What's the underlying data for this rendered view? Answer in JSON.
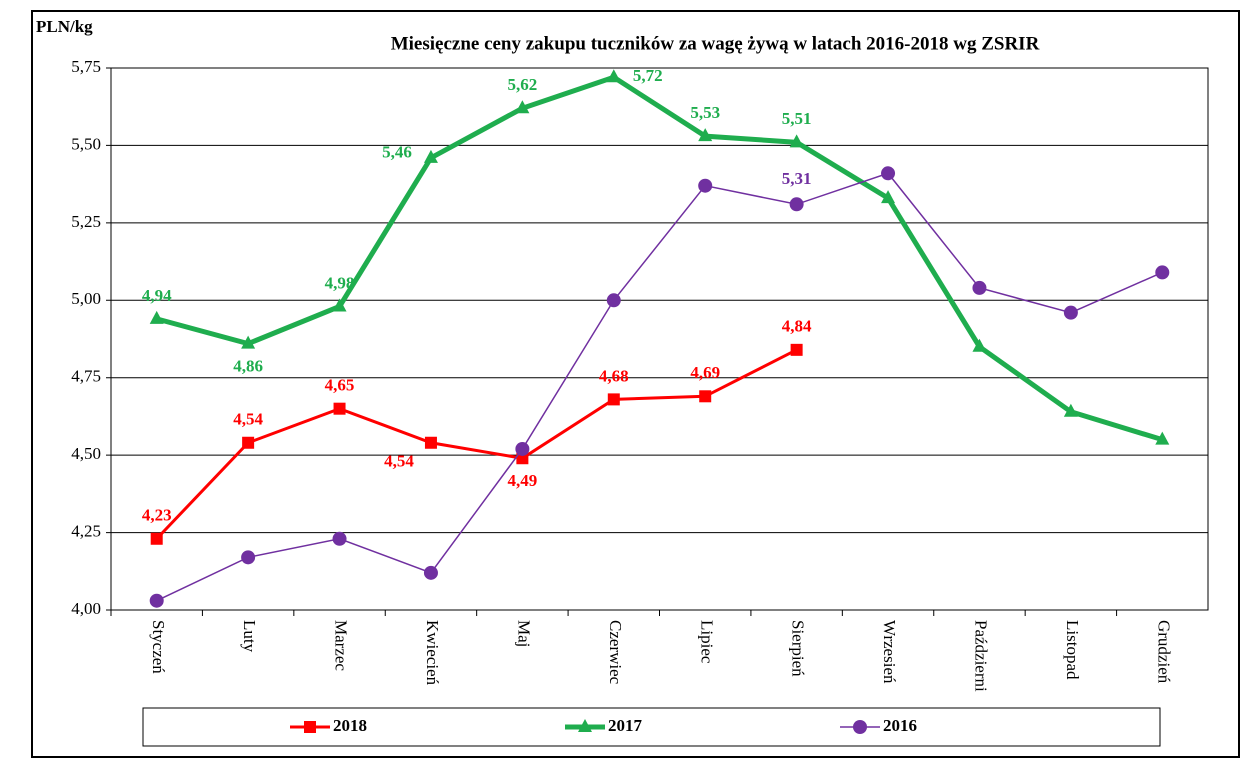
{
  "chart_data": {
    "type": "line",
    "title": "Miesięczne ceny zakupu tuczników za wagę żywą w latach 2016-2018  wg ZSRIR",
    "y_label": "PLN/kg",
    "categories": [
      "Styczeń",
      "Luty",
      "Marzec",
      "Kwiecień",
      "Maj",
      "Czerwiec",
      "Lipiec",
      "Sierpień",
      "Wrzesień",
      "Październi",
      "Listopad",
      "Grudzień"
    ],
    "series": [
      {
        "name": "2018",
        "color": "#ff0000",
        "marker": "square",
        "values": [
          4.23,
          4.54,
          4.65,
          4.54,
          4.49,
          4.68,
          4.69,
          4.84,
          null,
          null,
          null,
          null
        ],
        "value_labels": [
          "4,23",
          "4,54",
          "4,65",
          "4,54",
          "4,49",
          "4,68",
          "4,69",
          "4,84",
          null,
          null,
          null,
          null
        ]
      },
      {
        "name": "2017",
        "color": "#1fad4e",
        "marker": "triangle",
        "values": [
          4.94,
          4.86,
          4.98,
          5.46,
          5.62,
          5.72,
          5.53,
          5.51,
          5.33,
          4.85,
          4.64,
          4.55
        ],
        "value_labels": [
          "4,94",
          "4,86",
          "4,98",
          "5,46",
          "5,62",
          "5,72",
          "5,53",
          "5,51",
          null,
          null,
          null,
          null
        ]
      },
      {
        "name": "2016",
        "color": "#7030a0",
        "marker": "circle",
        "values": [
          4.03,
          4.17,
          4.23,
          4.12,
          4.52,
          5.0,
          5.37,
          5.31,
          5.41,
          5.04,
          4.96,
          5.09
        ],
        "value_labels": [
          null,
          null,
          null,
          null,
          null,
          null,
          null,
          "5,31",
          null,
          null,
          null,
          null
        ]
      }
    ],
    "ylim": [
      4.0,
      5.75
    ],
    "yticks": [
      {
        "value": 4.0,
        "label": "4,00"
      },
      {
        "value": 4.25,
        "label": "4,25"
      },
      {
        "value": 4.5,
        "label": "4,50"
      },
      {
        "value": 4.75,
        "label": "4,75"
      },
      {
        "value": 5.0,
        "label": "5,00"
      },
      {
        "value": 5.25,
        "label": "5,25"
      },
      {
        "value": 5.5,
        "label": "5,50"
      },
      {
        "value": 5.75,
        "label": "5,75"
      }
    ],
    "grid": true,
    "legend": "bottom"
  }
}
